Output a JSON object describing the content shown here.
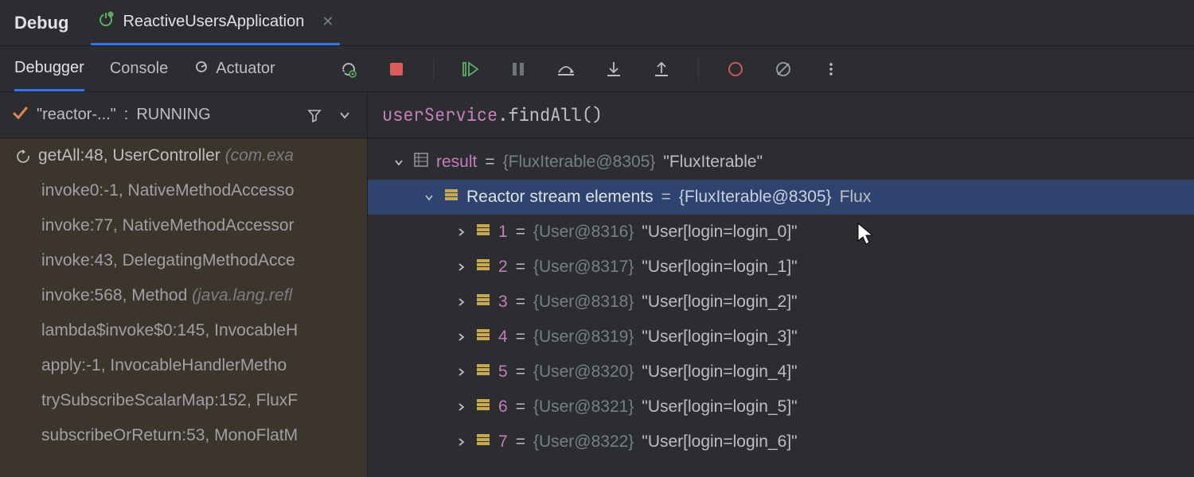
{
  "colors": {
    "accent": "#3574f0",
    "bg": "#2b2d30",
    "selected_row": "#2e436e",
    "green": "#5fad65",
    "orange_check": "#e08855",
    "red": "#db5c5c",
    "purple": "#c77dbb",
    "gold_icon": "#c9a94e",
    "frame_overlay": "rgba(110,80,30,0.25)"
  },
  "topbar": {
    "title": "Debug",
    "run_config_name": "ReactiveUsersApplication"
  },
  "subtabs": {
    "debugger": "Debugger",
    "console": "Console",
    "actuator": "Actuator"
  },
  "toolbar_icons": [
    "rerun-debug",
    "stop",
    "resume",
    "pause",
    "step-over",
    "step-into",
    "step-out",
    "breakpoint",
    "mute-breakpoints",
    "more"
  ],
  "thread": {
    "name": "\"reactor-...\"",
    "state": "RUNNING"
  },
  "frames": [
    {
      "text": "getAll:48, UserController",
      "pkg": "(com.exa",
      "top": true
    },
    {
      "text": "invoke0:-1, NativeMethodAccesso",
      "pkg": ""
    },
    {
      "text": "invoke:77, NativeMethodAccessor",
      "pkg": ""
    },
    {
      "text": "invoke:43, DelegatingMethodAcce",
      "pkg": ""
    },
    {
      "text": "invoke:568, Method ",
      "pkg": "(java.lang.refl"
    },
    {
      "text": "lambda$invoke$0:145, InvocableH",
      "pkg": ""
    },
    {
      "text": "apply:-1, InvocableHandlerMetho",
      "pkg": ""
    },
    {
      "text": "trySubscribeScalarMap:152, FluxF",
      "pkg": ""
    },
    {
      "text": "subscribeOrReturn:53, MonoFlatM",
      "pkg": ""
    }
  ],
  "expression": {
    "object": "userService",
    "call": ".findAll()"
  },
  "vars_root": {
    "name": "result",
    "type": "{FluxIterable@8305}",
    "display": "\"FluxIterable\""
  },
  "reactor_node": {
    "label": "Reactor stream elements",
    "type": "{FluxIterable@8305}",
    "tail": "Flux"
  },
  "elements": [
    {
      "idx": "1",
      "type": "{User@8316}",
      "str": "\"User[login=login_0]\""
    },
    {
      "idx": "2",
      "type": "{User@8317}",
      "str": "\"User[login=login_1]\""
    },
    {
      "idx": "3",
      "type": "{User@8318}",
      "str": "\"User[login=login_2]\""
    },
    {
      "idx": "4",
      "type": "{User@8319}",
      "str": "\"User[login=login_3]\""
    },
    {
      "idx": "5",
      "type": "{User@8320}",
      "str": "\"User[login=login_4]\""
    },
    {
      "idx": "6",
      "type": "{User@8321}",
      "str": "\"User[login=login_5]\""
    },
    {
      "idx": "7",
      "type": "{User@8322}",
      "str": "\"User[login=login_6]\""
    }
  ]
}
